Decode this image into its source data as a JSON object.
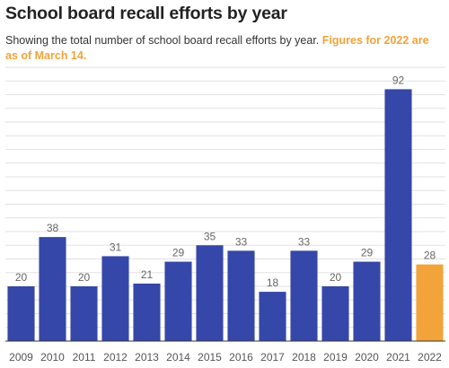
{
  "title": "School board recall efforts by year",
  "subtitle": {
    "text": "Showing the total number of school board recall efforts by year.",
    "note": "Figures for 2022 are as of March 14."
  },
  "colors": {
    "bar": "#3547a8",
    "highlight": "#f2a33a",
    "grid": "#e2e2e2",
    "baseline": "#333333"
  },
  "chart_data": {
    "type": "bar",
    "categories": [
      "2009",
      "2010",
      "2011",
      "2012",
      "2013",
      "2014",
      "2015",
      "2016",
      "2017",
      "2018",
      "2019",
      "2020",
      "2021",
      "2022"
    ],
    "values": [
      20,
      38,
      20,
      31,
      21,
      29,
      35,
      33,
      18,
      33,
      20,
      29,
      92,
      28
    ],
    "highlighted_category": "2022",
    "ylim": [
      0,
      100
    ],
    "grid": true,
    "data_labels": true,
    "xlabel": "",
    "ylabel": ""
  }
}
